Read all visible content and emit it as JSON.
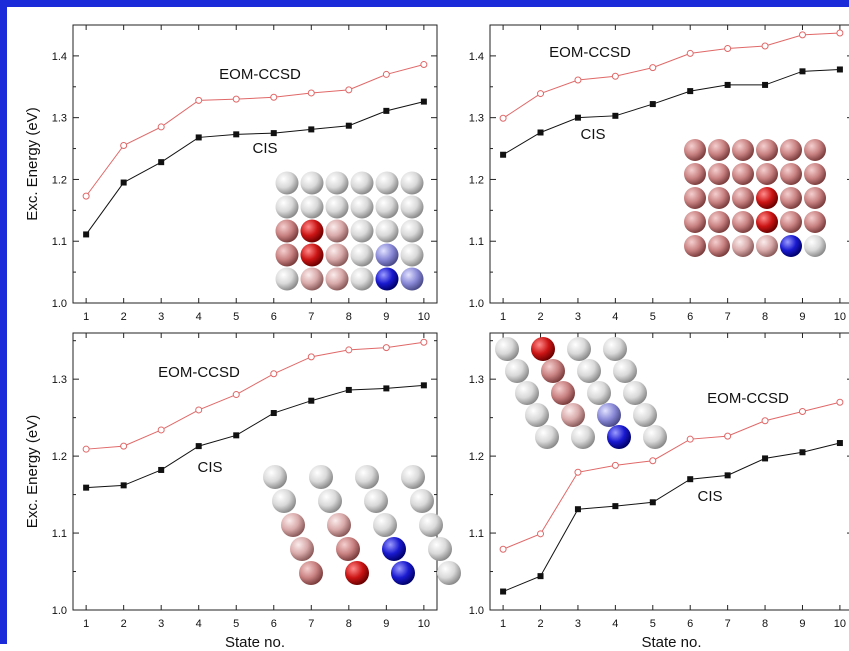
{
  "colors": {
    "border": "#1c2bd9",
    "eom_series": "#e06868",
    "cis_series": "#111111",
    "sphere_red": "#c01010",
    "sphere_blue": "#1a1ad0",
    "sphere_white": "#f0f0f0"
  },
  "chart_data": [
    {
      "type": "line",
      "panel": "top-left",
      "ylabel": "Exc. Energy (eV)",
      "xlabel": "",
      "x": [
        1,
        2,
        3,
        4,
        5,
        6,
        7,
        8,
        9,
        10
      ],
      "xticks": [
        "1",
        "2",
        "3",
        "4",
        "5",
        "6",
        "7",
        "8",
        "9",
        "10"
      ],
      "ylim": [
        1.0,
        1.45
      ],
      "yticks": [
        "1.0",
        "1.1",
        "1.2",
        "1.3",
        "1.4"
      ],
      "grid": false,
      "series": [
        {
          "name": "EOM-CCSD",
          "marker": "open-circle",
          "values": [
            1.173,
            1.255,
            1.285,
            1.328,
            1.33,
            1.333,
            1.34,
            1.345,
            1.37,
            1.386
          ]
        },
        {
          "name": "CIS",
          "marker": "filled-square",
          "values": [
            1.111,
            1.195,
            1.228,
            1.268,
            1.273,
            1.275,
            1.281,
            1.287,
            1.311,
            1.326
          ]
        }
      ],
      "inset": "sphere-grid-flat"
    },
    {
      "type": "line",
      "panel": "top-right",
      "ylabel": "",
      "xlabel": "",
      "x": [
        1,
        2,
        3,
        4,
        5,
        6,
        7,
        8,
        9,
        10
      ],
      "xticks": [
        "1",
        "2",
        "3",
        "4",
        "5",
        "6",
        "7",
        "8",
        "9",
        "10"
      ],
      "ylim": [
        1.0,
        1.45
      ],
      "yticks": [
        "1.0",
        "1.1",
        "1.2",
        "1.3",
        "1.4"
      ],
      "grid": false,
      "series": [
        {
          "name": "EOM-CCSD",
          "marker": "open-circle",
          "values": [
            1.299,
            1.339,
            1.361,
            1.367,
            1.381,
            1.404,
            1.412,
            1.416,
            1.434,
            1.437
          ]
        },
        {
          "name": "CIS",
          "marker": "filled-square",
          "values": [
            1.24,
            1.276,
            1.3,
            1.303,
            1.322,
            1.343,
            1.353,
            1.353,
            1.375,
            1.378
          ]
        }
      ],
      "inset": "sphere-grid-flat-2"
    },
    {
      "type": "line",
      "panel": "bottom-left",
      "ylabel": "Exc. Energy (eV)",
      "xlabel": "State no.",
      "x": [
        1,
        2,
        3,
        4,
        5,
        6,
        7,
        8,
        9,
        10
      ],
      "xticks": [
        "1",
        "2",
        "3",
        "4",
        "5",
        "6",
        "7",
        "8",
        "9",
        "10"
      ],
      "ylim": [
        1.0,
        1.36
      ],
      "yticks": [
        "1.0",
        "1.1",
        "1.2",
        "1.3"
      ],
      "grid": false,
      "series": [
        {
          "name": "EOM-CCSD",
          "marker": "open-circle",
          "values": [
            1.209,
            1.213,
            1.234,
            1.26,
            1.28,
            1.307,
            1.329,
            1.338,
            1.341,
            1.348
          ]
        },
        {
          "name": "CIS",
          "marker": "filled-square",
          "values": [
            1.159,
            1.162,
            1.182,
            1.213,
            1.227,
            1.256,
            1.272,
            1.286,
            1.288,
            1.292
          ]
        }
      ],
      "inset": "sphere-grid-perspective"
    },
    {
      "type": "line",
      "panel": "bottom-right",
      "ylabel": "",
      "xlabel": "State no.",
      "x": [
        1,
        2,
        3,
        4,
        5,
        6,
        7,
        8,
        9,
        10
      ],
      "xticks": [
        "1",
        "2",
        "3",
        "4",
        "5",
        "6",
        "7",
        "8",
        "9",
        "10"
      ],
      "ylim": [
        1.0,
        1.36
      ],
      "yticks": [
        "1.0",
        "1.1",
        "1.2",
        "1.3"
      ],
      "grid": false,
      "series": [
        {
          "name": "EOM-CCSD",
          "marker": "open-circle",
          "values": [
            1.079,
            1.099,
            1.179,
            1.188,
            1.194,
            1.222,
            1.226,
            1.246,
            1.258,
            1.27
          ]
        },
        {
          "name": "CIS",
          "marker": "filled-square",
          "values": [
            1.024,
            1.044,
            1.131,
            1.135,
            1.14,
            1.17,
            1.175,
            1.197,
            1.205,
            1.217
          ]
        }
      ],
      "inset": "sphere-grid-perspective-2"
    }
  ]
}
